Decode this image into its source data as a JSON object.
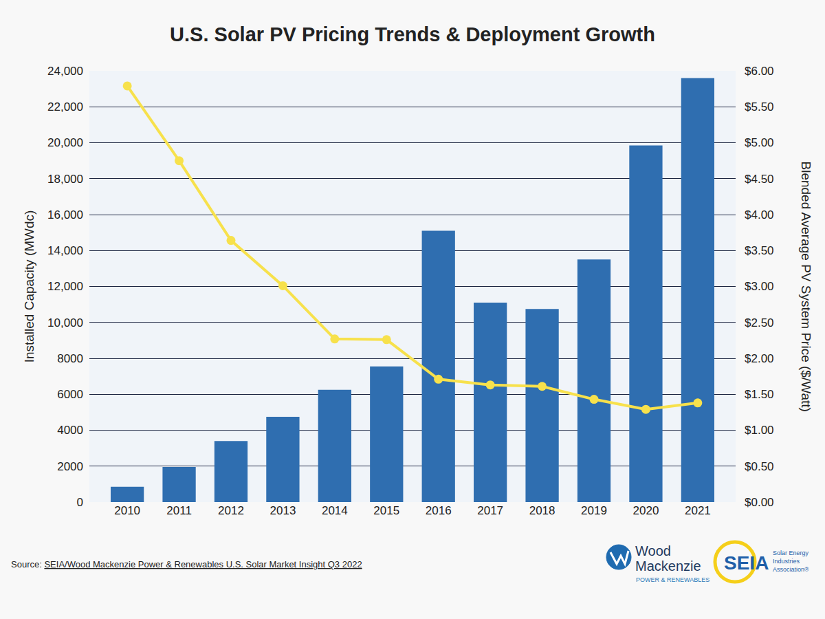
{
  "chart_data": {
    "type": "bar",
    "title": "U.S. Solar PV Pricing Trends & Deployment Growth",
    "categories": [
      "2010",
      "2011",
      "2012",
      "2013",
      "2014",
      "2015",
      "2016",
      "2017",
      "2018",
      "2019",
      "2020",
      "2021"
    ],
    "ylabel": "Installed Capacity (MWdc)",
    "y2label": "Blended Average PV System Price ($/Watt)",
    "ylim": [
      0,
      24000
    ],
    "yticks": [
      0,
      2000,
      4000,
      6000,
      8000,
      {
        "value": 10000,
        "label": "10,000"
      },
      {
        "value": 12000,
        "label": "12,000"
      },
      {
        "value": 14000,
        "label": "14,000"
      },
      {
        "value": 16000,
        "label": "16,000"
      },
      {
        "value": 18000,
        "label": "18,000"
      },
      {
        "value": 20000,
        "label": "20,000"
      },
      {
        "value": 22000,
        "label": "22,000"
      },
      {
        "value": 24000,
        "label": "24,000"
      }
    ],
    "y2lim": [
      0,
      6
    ],
    "y2ticks": [
      {
        "value": 0,
        "label": "$0.00"
      },
      {
        "value": 0.5,
        "label": "$0.50"
      },
      {
        "value": 1,
        "label": "$1.00"
      },
      {
        "value": 1.5,
        "label": "$1.50"
      },
      {
        "value": 2,
        "label": "$2.00"
      },
      {
        "value": 2.5,
        "label": "$2.50"
      },
      {
        "value": 3,
        "label": "$3.00"
      },
      {
        "value": 3.5,
        "label": "$3.50"
      },
      {
        "value": 4,
        "label": "$4.00"
      },
      {
        "value": 4.5,
        "label": "$4.50"
      },
      {
        "value": 5,
        "label": "$5.00"
      },
      {
        "value": 5.5,
        "label": "$5.50"
      },
      {
        "value": 6,
        "label": "$6.00"
      }
    ],
    "grid": true,
    "series": [
      {
        "type": "bar",
        "color": "#2f6eb0",
        "values": [
          850,
          1950,
          3400,
          4750,
          6250,
          7550,
          15100,
          11100,
          10750,
          13500,
          19850,
          23600
        ]
      },
      {
        "type": "line",
        "axis": "y2",
        "color": "#f7e14c",
        "marker": "circle",
        "line_style": "solid",
        "values": [
          5.79,
          4.75,
          3.64,
          3.01,
          2.27,
          2.26,
          1.71,
          1.63,
          1.61,
          1.43,
          1.29,
          1.38
        ]
      }
    ],
    "annotations": [
      "Source:",
      "SEIA/Wood Mackenzie Power & Renewables U.S. Solar Market Insight Q3 2022",
      "Wood",
      "Mackenzie",
      "POWER & RENEWABLES",
      "SEIA",
      "Solar Energy",
      "Industries",
      "Association®"
    ]
  }
}
